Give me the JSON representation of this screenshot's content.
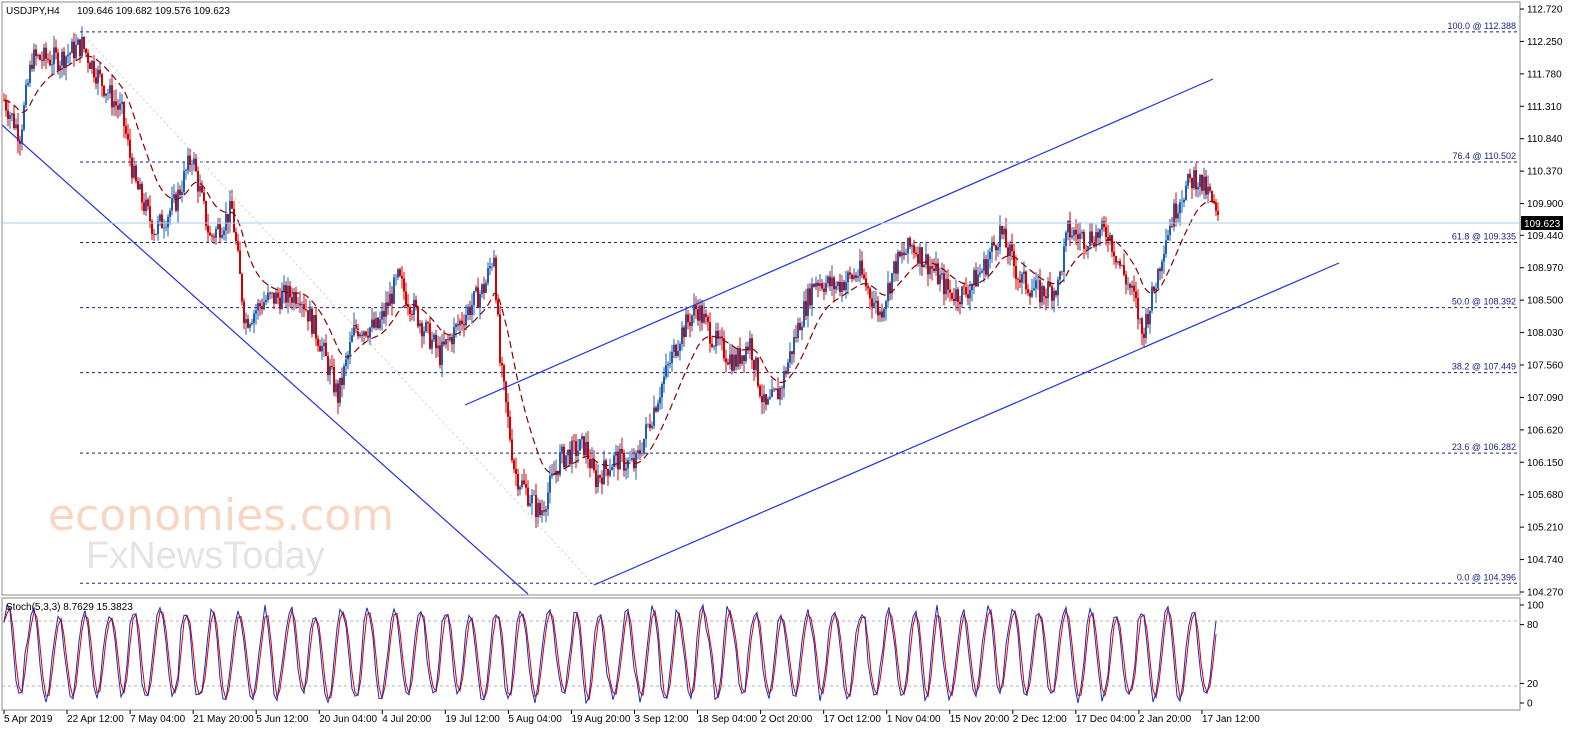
{
  "header": {
    "symbol": "USDJPY,H4",
    "ohlc": "109.646 109.682 109.576 109.623"
  },
  "price_axis": {
    "ticks": [
      "112.720",
      "112.250",
      "111.780",
      "111.310",
      "110.840",
      "110.370",
      "109.900",
      "109.440",
      "108.970",
      "108.500",
      "108.030",
      "107.560",
      "107.090",
      "106.620",
      "106.150",
      "105.680",
      "105.210",
      "104.740",
      "104.270"
    ],
    "current_price_label": "109.623"
  },
  "time_axis": {
    "labels": [
      "5 Apr 2019",
      "22 Apr 12:00",
      "7 May 04:00",
      "21 May 20:00",
      "5 Jun 12:00",
      "20 Jun 04:00",
      "4 Jul 20:00",
      "19 Jul 12:00",
      "5 Aug 04:00",
      "19 Aug 20:00",
      "3 Sep 12:00",
      "18 Sep 04:00",
      "2 Oct 20:00",
      "17 Oct 12:00",
      "1 Nov 04:00",
      "15 Nov 20:00",
      "2 Dec 12:00",
      "17 Dec 04:00",
      "2 Jan 20:00",
      "17 Jan 12:00"
    ]
  },
  "fibonacci": [
    {
      "label": "100.0 @ 112.388",
      "price": 112.388
    },
    {
      "label": "76.4 @ 110.502",
      "price": 110.502
    },
    {
      "label": "61.8 @ 109.335",
      "price": 109.335
    },
    {
      "label": "50.0 @ 108.392",
      "price": 108.392
    },
    {
      "label": "38.2 @ 107.449",
      "price": 107.449
    },
    {
      "label": "23.6 @ 106.282",
      "price": 106.282
    },
    {
      "label": "0.0 @ 104.396",
      "price": 104.396
    }
  ],
  "stochastic": {
    "label": "Stoch(5,3,3) 8.7629 15.3823",
    "ticks": [
      "100",
      "80",
      "20",
      "0"
    ]
  },
  "watermark": {
    "line1": "economies.com",
    "line2": "FxNewsToday"
  },
  "colors": {
    "price_line": "#d40000",
    "bull_candle": "#1a5fb4",
    "moving_average": "#8b0000",
    "channel": "#2233dd",
    "fib": "#1a237e",
    "stoch_main": "#1c2bb8",
    "stoch_signal": "#d40000"
  },
  "chart_data": {
    "type": "line",
    "title": "",
    "x": [
      "5 Apr 2019",
      "22 Apr 12:00",
      "7 May 04:00",
      "21 May 20:00",
      "5 Jun 12:00",
      "20 Jun 04:00",
      "4 Jul 20:00",
      "19 Jul 12:00",
      "5 Aug 04:00",
      "19 Aug 20:00",
      "3 Sep 12:00",
      "18 Sep 04:00",
      "2 Oct 20:00",
      "17 Oct 12:00",
      "1 Nov 04:00",
      "15 Nov 20:00",
      "2 Dec 12:00",
      "17 Dec 04:00",
      "2 Jan 20:00",
      "17 Jan 12:00"
    ],
    "series": [
      {
        "values": [
          111.6,
          112.1,
          111.1,
          110.0,
          108.6,
          108.2,
          108.6,
          108.5,
          106.4,
          106.2,
          107.0,
          108.3,
          107.0,
          108.7,
          108.9,
          108.7,
          109.4,
          108.8,
          109.4,
          109.62
        ]
      }
    ],
    "ylim": [
      104.27,
      112.72
    ],
    "legend": "none",
    "grid": false
  }
}
